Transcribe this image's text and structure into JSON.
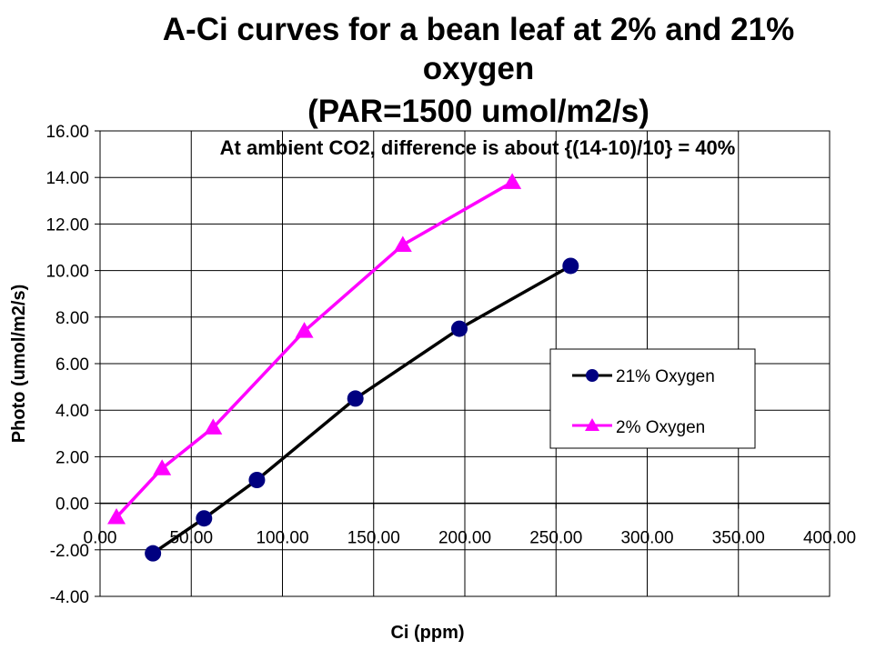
{
  "chart_data": {
    "type": "line",
    "title_lines": [
      "A-Ci curves for a bean leaf at 2% and 21%",
      "oxygen",
      "(PAR=1500 umol/m2/s)"
    ],
    "annotation": "At ambient CO2, difference is about {(14-10)/10} = 40%",
    "xlabel": "Ci (ppm)",
    "ylabel": "Photo (umol/m2/s)",
    "xlim": [
      0,
      400
    ],
    "ylim": [
      -4,
      16
    ],
    "x_ticks": [
      "0.00",
      "50.00",
      "100.00",
      "150.00",
      "200.00",
      "250.00",
      "300.00",
      "350.00",
      "400.00"
    ],
    "y_ticks": [
      "16.00",
      "14.00",
      "12.00",
      "10.00",
      "8.00",
      "6.00",
      "4.00",
      "2.00",
      "0.00",
      "-2.00",
      "-4.00"
    ],
    "grid": true,
    "legend_position": "right-middle",
    "series": [
      {
        "name": "21% Oxygen",
        "color": "#000000",
        "marker_color": "#000080",
        "marker": "circle",
        "x": [
          29,
          57,
          86,
          140,
          197,
          258
        ],
        "y": [
          -2.15,
          -0.65,
          1.0,
          4.5,
          7.5,
          10.2
        ]
      },
      {
        "name": "2% Oxygen",
        "color": "#ff00ff",
        "marker_color": "#ff00ff",
        "marker": "triangle",
        "x": [
          9,
          34,
          62,
          112,
          166,
          226
        ],
        "y": [
          -0.6,
          1.5,
          3.25,
          7.4,
          11.1,
          13.8
        ]
      }
    ]
  }
}
